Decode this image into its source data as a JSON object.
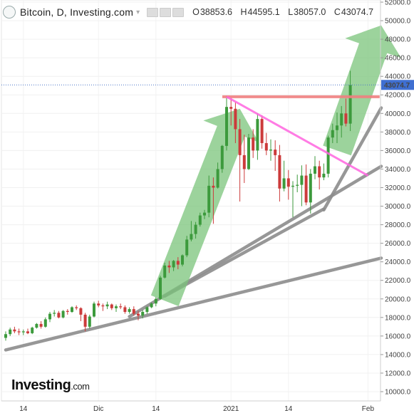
{
  "header": {
    "title": "Bitcoin, D, Investing.com",
    "open_label": "O",
    "open": "38853.6",
    "high_label": "H",
    "high": "44595.1",
    "low_label": "L",
    "low": "38057.0",
    "close_label": "C",
    "close": "43074.7"
  },
  "brand": {
    "name": "Investing",
    "suffix": ".com"
  },
  "chart_data": {
    "type": "candlestick",
    "ylim": [
      10000,
      52000
    ],
    "ytick_step": 2000,
    "current_price": 43074.7,
    "current_price_label": "43074.7",
    "x_tick_labels": [
      {
        "label": "14",
        "index": 4
      },
      {
        "label": "Dic",
        "index": 21
      },
      {
        "label": "14",
        "index": 34
      },
      {
        "label": "2021",
        "index": 51
      },
      {
        "label": "14",
        "index": 64
      },
      {
        "label": "Feb",
        "index": 82
      }
    ],
    "colors": {
      "up": "#3c9a3c",
      "down": "#cc3b3b",
      "up_arrow": "#7bc47b",
      "resistance": "#f08080",
      "triangle": "#ff66e0",
      "trendline": "#8c8c8c",
      "price_line": "#4a74c9"
    },
    "candles": [
      [
        15800,
        16500,
        15500,
        16200
      ],
      [
        16200,
        16900,
        16000,
        16700
      ],
      [
        16700,
        17000,
        16300,
        16500
      ],
      [
        16500,
        16800,
        16100,
        16400
      ],
      [
        16400,
        16700,
        16100,
        16500
      ],
      [
        16500,
        16800,
        16200,
        16300
      ],
      [
        16300,
        17000,
        16200,
        16900
      ],
      [
        16900,
        17400,
        16800,
        17300
      ],
      [
        17300,
        17600,
        16800,
        17000
      ],
      [
        17000,
        18000,
        16900,
        17800
      ],
      [
        17800,
        18600,
        17500,
        18400
      ],
      [
        18400,
        18800,
        18100,
        18500
      ],
      [
        18500,
        18700,
        17900,
        18000
      ],
      [
        18000,
        18800,
        17900,
        18700
      ],
      [
        18700,
        18900,
        18300,
        18600
      ],
      [
        18600,
        19200,
        18500,
        19100
      ],
      [
        19100,
        19300,
        18800,
        19000
      ],
      [
        19000,
        19100,
        17600,
        18300
      ],
      [
        18300,
        18500,
        16500,
        17000
      ],
      [
        17000,
        18300,
        16800,
        18100
      ],
      [
        18100,
        19700,
        18000,
        19500
      ],
      [
        19500,
        19800,
        19100,
        19300
      ],
      [
        19300,
        19500,
        18700,
        19200
      ],
      [
        19200,
        19700,
        18900,
        19400
      ],
      [
        19400,
        19500,
        18800,
        19000
      ],
      [
        19000,
        19400,
        18600,
        19200
      ],
      [
        19200,
        19500,
        18900,
        19100
      ],
      [
        19100,
        19300,
        18400,
        18600
      ],
      [
        18600,
        19100,
        18400,
        18900
      ],
      [
        18900,
        19200,
        18200,
        18400
      ],
      [
        18400,
        18700,
        17700,
        18200
      ],
      [
        18200,
        18800,
        17900,
        18600
      ],
      [
        18600,
        19200,
        18400,
        19100
      ],
      [
        19100,
        19600,
        19000,
        19500
      ],
      [
        19500,
        20200,
        19200,
        20000
      ],
      [
        20000,
        22500,
        19900,
        22300
      ],
      [
        22300,
        23900,
        22200,
        23600
      ],
      [
        23600,
        24100,
        22800,
        23400
      ],
      [
        23400,
        24200,
        23000,
        24100
      ],
      [
        24100,
        24500,
        23200,
        23700
      ],
      [
        23700,
        24800,
        23500,
        24700
      ],
      [
        24700,
        26800,
        24500,
        26400
      ],
      [
        26400,
        28400,
        26200,
        27000
      ],
      [
        27000,
        28300,
        26500,
        28000
      ],
      [
        28000,
        29300,
        27800,
        29000
      ],
      [
        29000,
        29600,
        28600,
        29300
      ],
      [
        29300,
        33300,
        28800,
        32200
      ],
      [
        32200,
        33100,
        28100,
        32000
      ],
      [
        32000,
        34700,
        31900,
        34000
      ],
      [
        34000,
        36600,
        33600,
        36500
      ],
      [
        36500,
        41900,
        36000,
        40700
      ],
      [
        40700,
        41700,
        38700,
        40500
      ],
      [
        40500,
        41200,
        36800,
        38300
      ],
      [
        38300,
        39400,
        30500,
        35500
      ],
      [
        35500,
        37700,
        32500,
        34000
      ],
      [
        34000,
        37800,
        33900,
        37400
      ],
      [
        37400,
        38300,
        35200,
        36000
      ],
      [
        36000,
        40000,
        35000,
        39400
      ],
      [
        39400,
        39800,
        36200,
        36800
      ],
      [
        36800,
        37900,
        35500,
        36000
      ],
      [
        36000,
        37200,
        34900,
        36100
      ],
      [
        36100,
        37100,
        33800,
        35500
      ],
      [
        35500,
        36600,
        30500,
        31900
      ],
      [
        31900,
        34900,
        31600,
        33000
      ],
      [
        33000,
        33900,
        30700,
        32100
      ],
      [
        32100,
        32700,
        28800,
        32200
      ],
      [
        32200,
        33400,
        31500,
        32300
      ],
      [
        32300,
        34400,
        30000,
        33300
      ],
      [
        33300,
        34500,
        30100,
        30400
      ],
      [
        30400,
        34000,
        29200,
        33500
      ],
      [
        33500,
        35400,
        32900,
        34300
      ],
      [
        34300,
        34900,
        31800,
        33100
      ],
      [
        33100,
        34600,
        32800,
        33500
      ],
      [
        33500,
        37600,
        33100,
        37400
      ],
      [
        37400,
        38900,
        36800,
        38200
      ],
      [
        38200,
        40100,
        36800,
        38700
      ],
      [
        38700,
        40800,
        37400,
        40000
      ],
      [
        40000,
        41600,
        38600,
        38900
      ],
      [
        38900,
        44600,
        38100,
        43075
      ]
    ],
    "arrows": [
      {
        "from": [
          36,
          19800
        ],
        "to": [
          53,
          40500
        ],
        "width": 3200
      },
      {
        "from": [
          75,
          36000
        ],
        "to": [
          85,
          49500
        ],
        "width": 3200
      }
    ],
    "resistance": {
      "x": [
        50,
        84
      ],
      "y": 41800
    },
    "triangle_line": {
      "from": [
        50,
        41800
      ],
      "to": [
        82,
        33300
      ]
    },
    "trendlines": [
      {
        "from": [
          0,
          14500
        ],
        "to": [
          85,
          24400
        ]
      },
      {
        "from": [
          28,
          18100
        ],
        "to": [
          85,
          34300
        ]
      },
      {
        "from": [
          72,
          29600
        ],
        "to": [
          85,
          40600
        ]
      },
      {
        "from": [
          36,
          20300
        ],
        "to": [
          72,
          29700
        ]
      }
    ]
  }
}
